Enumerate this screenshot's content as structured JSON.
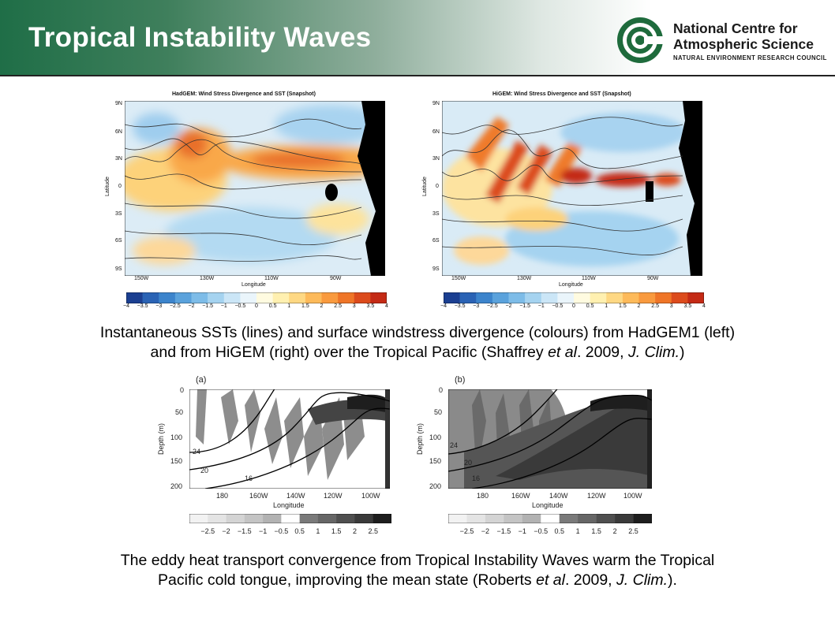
{
  "header": {
    "title": "Tropical Instability Waves"
  },
  "logo": {
    "line1": "National Centre for",
    "line2": "Atmospheric Science",
    "line3": "NATURAL ENVIRONMENT RESEARCH COUNCIL"
  },
  "top_panels": [
    {
      "title": "HadGEM: Wind Stress Divergence and SST (Snapshot)",
      "ylabel": "Latitude",
      "xlabel": "Longitude",
      "yticks": [
        "9N",
        "6N",
        "3N",
        "0",
        "3S",
        "6S",
        "9S"
      ],
      "xticks": [
        "150W",
        "130W",
        "110W",
        "90W"
      ]
    },
    {
      "title": "HiGEM: Wind Stress Divergence and SST (Snapshot)",
      "ylabel": "Latitude",
      "xlabel": "Longitude",
      "yticks": [
        "9N",
        "6N",
        "3N",
        "0",
        "3S",
        "6S",
        "9S"
      ],
      "xticks": [
        "150W",
        "130W",
        "110W",
        "90W"
      ]
    }
  ],
  "top_colorbar": {
    "labels": [
      "−4",
      "−3.5",
      "−3",
      "−2.5",
      "−2",
      "−1.5",
      "−1",
      "−0.5",
      "0",
      "0.5",
      "1",
      "1.5",
      "2",
      "2.5",
      "3",
      "3.5",
      "4"
    ],
    "colors": [
      "#1b3f91",
      "#2a63b5",
      "#3c84cc",
      "#5aa2dc",
      "#7dbce8",
      "#a5d3f0",
      "#cbe6f7",
      "#eaf5fb",
      "#fffbe0",
      "#fff0b0",
      "#fed883",
      "#fdba5a",
      "#f99a3e",
      "#ef7527",
      "#dc4b1c",
      "#c42a15"
    ]
  },
  "caption1": {
    "line1": "Instantaneous SSTs (lines) and surface windstress divergence (colours) from HadGEM1 (left)",
    "line2_a": "and from HiGEM (right) over the Tropical Pacific (Shaffrey ",
    "line2_b": "et al",
    "line2_c": ". 2009, ",
    "line2_d": "J. Clim.",
    "line2_e": ")"
  },
  "bottom_panels": [
    {
      "letter": "(a)",
      "ylabel": "Depth (m)",
      "xlabel": "Longitude",
      "yticks": [
        "0",
        "50",
        "100",
        "150",
        "200"
      ],
      "xticks": [
        "180",
        "160W",
        "140W",
        "120W",
        "100W"
      ],
      "contours": [
        "24",
        "20",
        "16"
      ]
    },
    {
      "letter": "(b)",
      "ylabel": "Depth (m)",
      "xlabel": "Longitude",
      "yticks": [
        "0",
        "50",
        "100",
        "150",
        "200"
      ],
      "xticks": [
        "180",
        "160W",
        "140W",
        "120W",
        "100W"
      ],
      "contours": [
        "24",
        "20",
        "16"
      ]
    }
  ],
  "bottom_colorbar": {
    "labels": [
      "−2.5",
      "−2",
      "−1.5",
      "−1",
      "−0.5",
      "0.5",
      "1",
      "1.5",
      "2",
      "2.5"
    ],
    "colors": [
      "#f2f2f2",
      "#e4e4e4",
      "#d4d4d4",
      "#c4c4c4",
      "#b2b2b2",
      "#ffffff",
      "#7a7a7a",
      "#666666",
      "#4f4f4f",
      "#3a3a3a",
      "#1e1e1e"
    ]
  },
  "caption2": {
    "line1": "The eddy heat transport convergence from Tropical Instability Waves warm the Tropical",
    "line2_a": "Pacific cold tongue, improving the mean state (Roberts ",
    "line2_b": "et al",
    "line2_c": ". 2009, ",
    "line2_d": "J. Clim.",
    "line2_e": ")."
  }
}
